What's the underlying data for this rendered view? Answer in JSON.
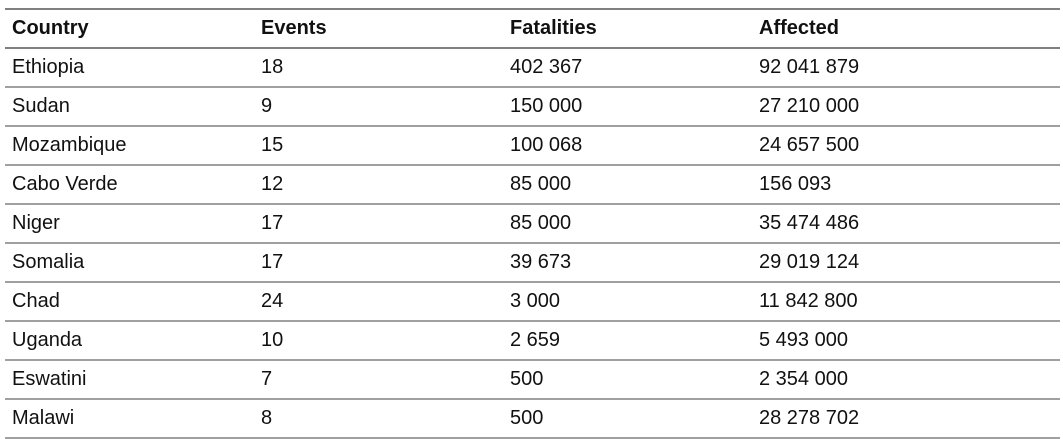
{
  "table": {
    "header": [
      "Country",
      "Events",
      "Fatalities",
      "Affected"
    ],
    "rows": [
      [
        "Ethiopia",
        "18",
        "402 367",
        "92 041 879"
      ],
      [
        "Sudan",
        "9",
        "150 000",
        "27 210 000"
      ],
      [
        "Mozambique",
        "15",
        "100 068",
        "24 657 500"
      ],
      [
        "Cabo Verde",
        "12",
        "85 000",
        "156 093"
      ],
      [
        "Niger",
        "17",
        "85 000",
        "35 474 486"
      ],
      [
        "Somalia",
        "17",
        "39 673",
        "29 019 124"
      ],
      [
        "Chad",
        "24",
        "3 000",
        "11 842 800"
      ],
      [
        "Uganda",
        "10",
        "2 659",
        "5 493 000"
      ],
      [
        "Eswatini",
        "7",
        "500",
        "2 354 000"
      ],
      [
        "Malawi",
        "8",
        "500",
        "28 278 702"
      ]
    ]
  }
}
